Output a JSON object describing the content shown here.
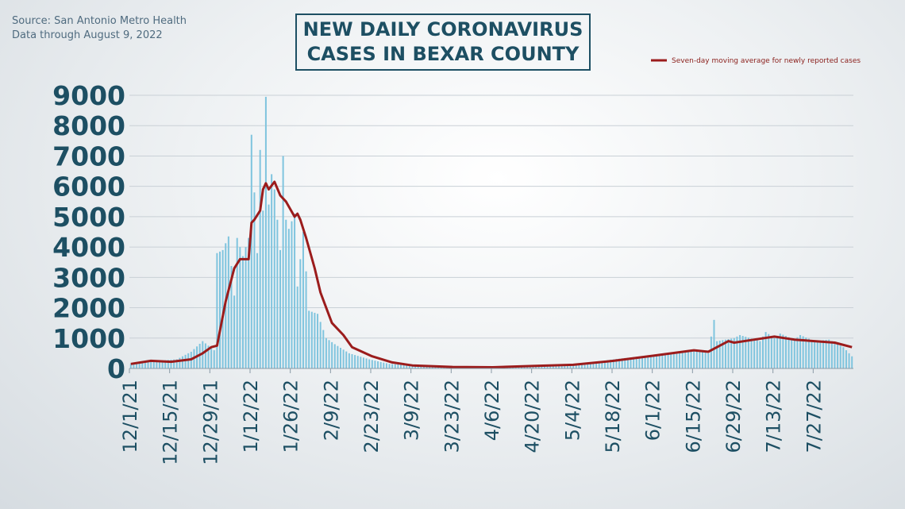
{
  "source": {
    "line1": "Source: San Antonio Metro Health",
    "line2": "Data through August 9, 2022"
  },
  "colors": {
    "bars": "#7fc4de",
    "line": "#9b1c1c",
    "text": "#1d4f63",
    "grid": "#c9d0d6"
  },
  "chart_data": {
    "type": "bar",
    "title": "NEW DAILY CORONAVIRUS\nCASES IN BEXAR COUNTY",
    "xlabel": "",
    "ylabel": "",
    "ylim": [
      0,
      9000
    ],
    "yticks": [
      0,
      1000,
      2000,
      3000,
      4000,
      5000,
      6000,
      7000,
      8000,
      9000
    ],
    "xticks": [
      "12/1/21",
      "12/15/21",
      "12/29/21",
      "1/12/22",
      "1/26/22",
      "2/9/22",
      "2/23/22",
      "3/9/22",
      "3/23/22",
      "4/6/22",
      "4/20/22",
      "5/4/22",
      "5/18/22",
      "6/1/22",
      "6/15/22",
      "6/29/22",
      "7/13/22",
      "7/27/22"
    ],
    "grid": true,
    "legend_position": "top-right",
    "x_start": "2021-12-01",
    "x_end": "2022-08-09",
    "bar_anchors": [
      [
        "2021-12-01",
        150
      ],
      [
        "2021-12-10",
        250
      ],
      [
        "2021-12-17",
        300
      ],
      [
        "2021-12-22",
        550
      ],
      [
        "2021-12-26",
        900
      ],
      [
        "2021-12-30",
        600
      ],
      [
        "2021-12-31",
        3800
      ],
      [
        "2022-01-02",
        3900
      ],
      [
        "2022-01-04",
        4350
      ],
      [
        "2022-01-06",
        2400
      ],
      [
        "2022-01-07",
        4300
      ],
      [
        "2022-01-09",
        3700
      ],
      [
        "2022-01-11",
        4300
      ],
      [
        "2022-01-12",
        7700
      ],
      [
        "2022-01-13",
        5800
      ],
      [
        "2022-01-14",
        3800
      ],
      [
        "2022-01-15",
        7200
      ],
      [
        "2022-01-16",
        5200
      ],
      [
        "2022-01-17",
        8950
      ],
      [
        "2022-01-18",
        5400
      ],
      [
        "2022-01-19",
        6400
      ],
      [
        "2022-01-20",
        5900
      ],
      [
        "2022-01-22",
        3900
      ],
      [
        "2022-01-23",
        7000
      ],
      [
        "2022-01-24",
        4900
      ],
      [
        "2022-01-25",
        4600
      ],
      [
        "2022-01-27",
        5100
      ],
      [
        "2022-01-28",
        2700
      ],
      [
        "2022-01-30",
        4500
      ],
      [
        "2022-02-01",
        1900
      ],
      [
        "2022-02-04",
        1800
      ],
      [
        "2022-02-07",
        1000
      ],
      [
        "2022-02-10",
        800
      ],
      [
        "2022-02-15",
        500
      ],
      [
        "2022-02-22",
        300
      ],
      [
        "2022-03-01",
        150
      ],
      [
        "2022-03-15",
        70
      ],
      [
        "2022-04-01",
        50
      ],
      [
        "2022-04-20",
        70
      ],
      [
        "2022-05-04",
        120
      ],
      [
        "2022-05-18",
        300
      ],
      [
        "2022-06-01",
        450
      ],
      [
        "2022-06-15",
        600
      ],
      [
        "2022-06-20",
        500
      ],
      [
        "2022-06-22",
        1600
      ],
      [
        "2022-06-23",
        900
      ],
      [
        "2022-06-29",
        1000
      ],
      [
        "2022-07-01",
        1100
      ],
      [
        "2022-07-08",
        900
      ],
      [
        "2022-07-10",
        1200
      ],
      [
        "2022-07-13",
        1000
      ],
      [
        "2022-07-15",
        1150
      ],
      [
        "2022-07-20",
        950
      ],
      [
        "2022-07-22",
        1100
      ],
      [
        "2022-07-27",
        900
      ],
      [
        "2022-08-01",
        950
      ],
      [
        "2022-08-06",
        700
      ],
      [
        "2022-08-09",
        400
      ]
    ],
    "series": [
      {
        "name": "Seven-day moving average for newly reported cases",
        "type": "line",
        "points": [
          [
            "2021-12-01",
            150
          ],
          [
            "2021-12-08",
            250
          ],
          [
            "2021-12-15",
            220
          ],
          [
            "2021-12-22",
            300
          ],
          [
            "2021-12-26",
            500
          ],
          [
            "2021-12-29",
            700
          ],
          [
            "2021-12-31",
            750
          ],
          [
            "2022-01-03",
            2200
          ],
          [
            "2022-01-06",
            3300
          ],
          [
            "2022-01-08",
            3600
          ],
          [
            "2022-01-11",
            3600
          ],
          [
            "2022-01-12",
            4800
          ],
          [
            "2022-01-13",
            4900
          ],
          [
            "2022-01-15",
            5200
          ],
          [
            "2022-01-16",
            5900
          ],
          [
            "2022-01-17",
            6100
          ],
          [
            "2022-01-18",
            5900
          ],
          [
            "2022-01-20",
            6150
          ],
          [
            "2022-01-22",
            5700
          ],
          [
            "2022-01-24",
            5500
          ],
          [
            "2022-01-27",
            5000
          ],
          [
            "2022-01-28",
            5100
          ],
          [
            "2022-01-29",
            4900
          ],
          [
            "2022-01-31",
            4300
          ],
          [
            "2022-02-03",
            3300
          ],
          [
            "2022-02-05",
            2500
          ],
          [
            "2022-02-09",
            1500
          ],
          [
            "2022-02-13",
            1100
          ],
          [
            "2022-02-16",
            700
          ],
          [
            "2022-02-23",
            400
          ],
          [
            "2022-03-02",
            200
          ],
          [
            "2022-03-09",
            100
          ],
          [
            "2022-03-23",
            50
          ],
          [
            "2022-04-06",
            40
          ],
          [
            "2022-04-20",
            80
          ],
          [
            "2022-05-04",
            120
          ],
          [
            "2022-05-18",
            250
          ],
          [
            "2022-06-01",
            420
          ],
          [
            "2022-06-15",
            600
          ],
          [
            "2022-06-20",
            550
          ],
          [
            "2022-06-24",
            750
          ],
          [
            "2022-06-27",
            900
          ],
          [
            "2022-06-29",
            850
          ],
          [
            "2022-07-06",
            950
          ],
          [
            "2022-07-13",
            1050
          ],
          [
            "2022-07-20",
            950
          ],
          [
            "2022-07-27",
            900
          ],
          [
            "2022-08-03",
            850
          ],
          [
            "2022-08-09",
            700
          ]
        ]
      }
    ]
  }
}
